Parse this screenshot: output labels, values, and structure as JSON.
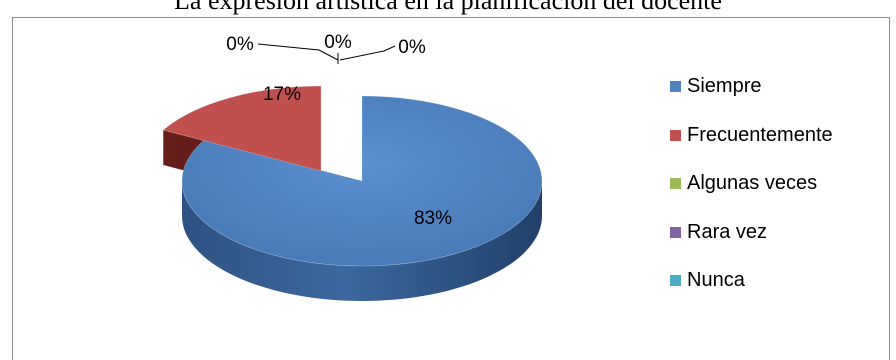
{
  "chart_data": {
    "type": "pie",
    "title": "La expresión artística en  la planificación  del docente",
    "categories": [
      "Siempre",
      "Frecuentemente",
      "Algunas veces",
      "Rara vez",
      "Nunca"
    ],
    "values": [
      83,
      17,
      0,
      0,
      0
    ],
    "data_labels": [
      "83%",
      "17%",
      "0%",
      "0%",
      "0%"
    ],
    "colors": [
      "#4f81bd",
      "#c0504d",
      "#9bbb59",
      "#8064a2",
      "#4bacc6"
    ],
    "style": "3d-exploded",
    "legend_position": "right"
  }
}
